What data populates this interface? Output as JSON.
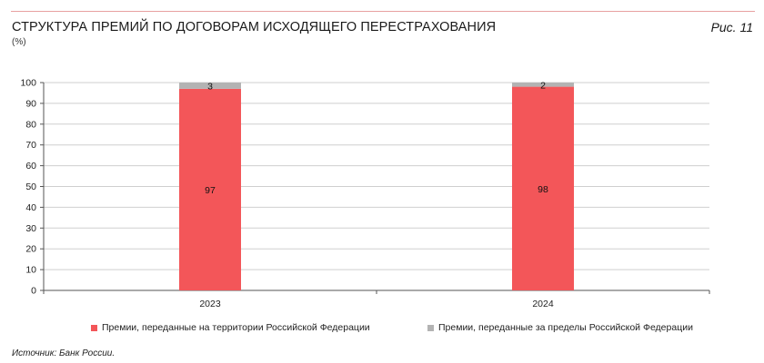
{
  "header": {
    "title": "СТРУКТУРА ПРЕМИЙ ПО ДОГОВОРАМ ИСХОДЯЩЕГО ПЕРЕСТРАХОВАНИЯ",
    "unit": "(%)",
    "figure_label": "Рис. 11"
  },
  "source": "Источник: Банк России.",
  "colors": {
    "series_domestic": "#f35659",
    "series_foreign": "#b3b3b3",
    "grid": "#cfcfcf",
    "axis": "#555555",
    "rule": "#e8a0a0"
  },
  "chart_data": {
    "type": "bar",
    "stacked": true,
    "categories": [
      "2023",
      "2024"
    ],
    "series": [
      {
        "name": "Премии, переданные на территории Российской Федерации",
        "values": [
          97,
          98
        ]
      },
      {
        "name": "Премии, переданные за пределы Российской Федерации",
        "values": [
          3,
          2
        ]
      }
    ],
    "ylim": [
      0,
      100
    ],
    "yticks": [
      0,
      10,
      20,
      30,
      40,
      50,
      60,
      70,
      80,
      90,
      100
    ],
    "grid": true,
    "legend_position": "bottom"
  }
}
